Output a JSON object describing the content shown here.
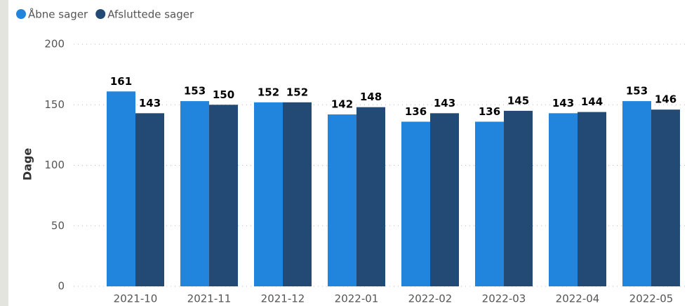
{
  "chart_data": {
    "type": "bar",
    "y_label": "Dage",
    "categories": [
      "2021-10",
      "2021-11",
      "2021-12",
      "2022-01",
      "2022-02",
      "2022-03",
      "2022-04",
      "2022-05"
    ],
    "series": [
      {
        "name": "Åbne sager",
        "color": "#2185de",
        "values": [
          161,
          153,
          152,
          142,
          136,
          136,
          143,
          153
        ]
      },
      {
        "name": "Afsluttede sager",
        "color": "#234a75",
        "values": [
          143,
          150,
          152,
          148,
          143,
          145,
          144,
          146
        ]
      }
    ],
    "ylim": [
      0,
      200
    ],
    "yticks": [
      0,
      50,
      100,
      150,
      200
    ],
    "grid": true,
    "legend": "top-left"
  }
}
